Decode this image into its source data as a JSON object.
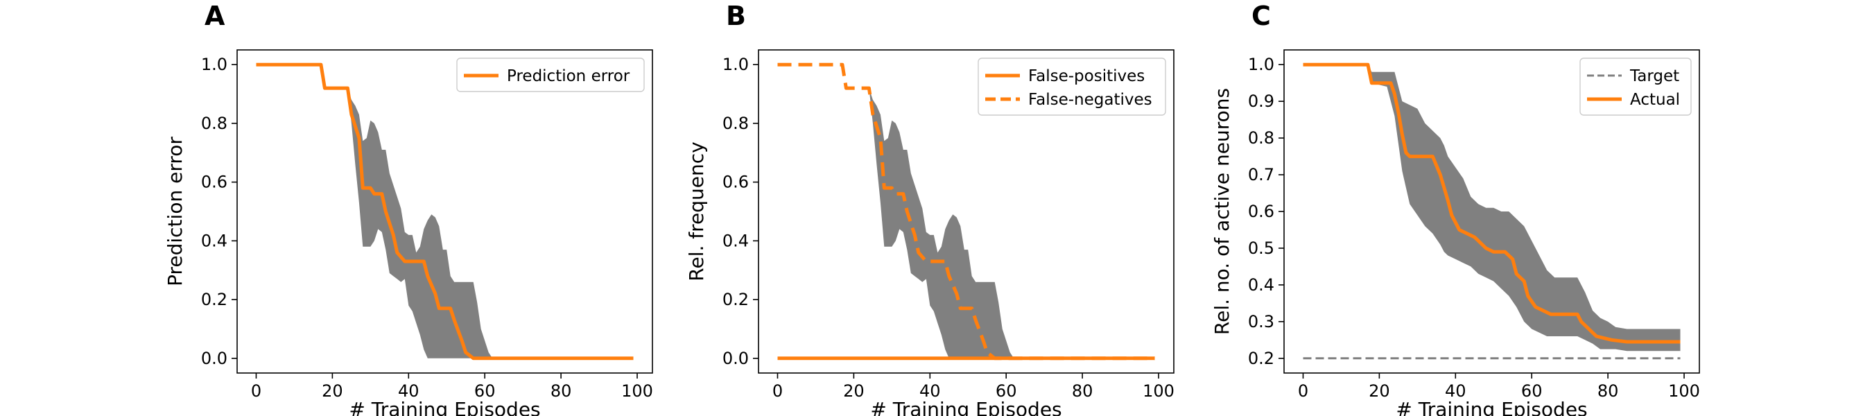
{
  "colors": {
    "orange": "#ff7f0e",
    "band": "#808080",
    "target": "#808080",
    "axis": "#000000"
  },
  "chart_data": [
    {
      "type": "line",
      "panel": "A",
      "xlabel": "# Training Episodes",
      "ylabel": "Prediction error",
      "xlim": [
        -5,
        104
      ],
      "ylim": [
        -0.05,
        1.05
      ],
      "xticks": [
        0,
        20,
        40,
        60,
        80,
        100
      ],
      "yticks": [
        0.0,
        0.2,
        0.4,
        0.6,
        0.8,
        1.0
      ],
      "ytick_labels": [
        "0.0",
        "0.2",
        "0.4",
        "0.6",
        "0.8",
        "1.0"
      ],
      "legend": "top-right",
      "series": [
        {
          "name": "Prediction error",
          "style": "solid",
          "x": [
            0,
            17,
            18,
            24,
            25,
            27,
            28,
            30,
            31,
            33,
            34,
            36,
            37,
            39,
            40,
            44,
            45,
            47,
            48,
            51,
            52,
            54,
            55,
            57,
            58,
            99
          ],
          "y": [
            1.0,
            1.0,
            0.92,
            0.92,
            0.83,
            0.75,
            0.58,
            0.58,
            0.56,
            0.56,
            0.5,
            0.42,
            0.36,
            0.33,
            0.33,
            0.33,
            0.28,
            0.22,
            0.17,
            0.17,
            0.13,
            0.06,
            0.02,
            0.0,
            0.0,
            0.0
          ]
        }
      ],
      "band": {
        "x": [
          0,
          17,
          18,
          24,
          25,
          26,
          27,
          28,
          29,
          30,
          31,
          32,
          33,
          34,
          35,
          36,
          37,
          38,
          39,
          40,
          41,
          42,
          43,
          44,
          45,
          46,
          47,
          48,
          49,
          50,
          51,
          52,
          53,
          54,
          55,
          56,
          57,
          58,
          59,
          60,
          61,
          62,
          63,
          99
        ],
        "upper": [
          1.0,
          1.0,
          0.92,
          0.92,
          0.88,
          0.86,
          0.83,
          0.74,
          0.75,
          0.81,
          0.8,
          0.77,
          0.71,
          0.71,
          0.63,
          0.59,
          0.55,
          0.51,
          0.43,
          0.42,
          0.42,
          0.36,
          0.38,
          0.44,
          0.47,
          0.49,
          0.48,
          0.45,
          0.37,
          0.37,
          0.28,
          0.26,
          0.26,
          0.26,
          0.26,
          0.26,
          0.26,
          0.19,
          0.1,
          0.06,
          0.02,
          0.0,
          0.0,
          0.0
        ],
        "lower": [
          1.0,
          1.0,
          0.92,
          0.92,
          0.8,
          0.66,
          0.53,
          0.38,
          0.38,
          0.38,
          0.4,
          0.44,
          0.43,
          0.37,
          0.29,
          0.28,
          0.27,
          0.26,
          0.27,
          0.18,
          0.16,
          0.12,
          0.08,
          0.03,
          0.0,
          0.0,
          0.0,
          0.0,
          0.0,
          0.0,
          0.0,
          0.0,
          0.0,
          0.0,
          0.0,
          0.0,
          0.0,
          0.0,
          0.0,
          0.0,
          0.0,
          0.0,
          0.0,
          0.0
        ]
      }
    },
    {
      "type": "line",
      "panel": "B",
      "xlabel": "# Training Episodes",
      "ylabel": "Rel. frequency",
      "xlim": [
        -5,
        104
      ],
      "ylim": [
        -0.05,
        1.05
      ],
      "xticks": [
        0,
        20,
        40,
        60,
        80,
        100
      ],
      "yticks": [
        0.0,
        0.2,
        0.4,
        0.6,
        0.8,
        1.0
      ],
      "ytick_labels": [
        "0.0",
        "0.2",
        "0.4",
        "0.6",
        "0.8",
        "1.0"
      ],
      "legend": "top-right",
      "series": [
        {
          "name": "False-positives",
          "style": "solid",
          "x": [
            0,
            99
          ],
          "y": [
            0.0,
            0.0
          ]
        },
        {
          "name": "False-negatives",
          "style": "dashed",
          "x": [
            0,
            17,
            18,
            24,
            25,
            27,
            28,
            30,
            31,
            33,
            34,
            36,
            37,
            39,
            40,
            44,
            45,
            47,
            48,
            51,
            52,
            54,
            55,
            57,
            58,
            99
          ],
          "y": [
            1.0,
            1.0,
            0.92,
            0.92,
            0.83,
            0.75,
            0.58,
            0.58,
            0.56,
            0.56,
            0.5,
            0.42,
            0.36,
            0.33,
            0.33,
            0.33,
            0.28,
            0.22,
            0.17,
            0.17,
            0.13,
            0.06,
            0.02,
            0.0,
            0.0,
            0.0
          ]
        }
      ],
      "band": {
        "x": [
          0,
          17,
          18,
          24,
          25,
          26,
          27,
          28,
          29,
          30,
          31,
          32,
          33,
          34,
          35,
          36,
          37,
          38,
          39,
          40,
          41,
          42,
          43,
          44,
          45,
          46,
          47,
          48,
          49,
          50,
          51,
          52,
          53,
          54,
          55,
          56,
          57,
          58,
          59,
          60,
          61,
          62,
          63,
          99
        ],
        "upper": [
          1.0,
          1.0,
          0.92,
          0.92,
          0.88,
          0.86,
          0.83,
          0.74,
          0.75,
          0.81,
          0.8,
          0.77,
          0.71,
          0.71,
          0.63,
          0.59,
          0.55,
          0.51,
          0.43,
          0.42,
          0.42,
          0.36,
          0.38,
          0.44,
          0.47,
          0.49,
          0.48,
          0.45,
          0.37,
          0.37,
          0.28,
          0.26,
          0.26,
          0.26,
          0.26,
          0.26,
          0.26,
          0.19,
          0.1,
          0.06,
          0.02,
          0.0,
          0.0,
          0.0
        ],
        "lower": [
          1.0,
          1.0,
          0.92,
          0.92,
          0.8,
          0.66,
          0.53,
          0.38,
          0.38,
          0.38,
          0.4,
          0.44,
          0.43,
          0.37,
          0.29,
          0.28,
          0.27,
          0.26,
          0.27,
          0.18,
          0.16,
          0.12,
          0.08,
          0.03,
          0.0,
          0.0,
          0.0,
          0.0,
          0.0,
          0.0,
          0.0,
          0.0,
          0.0,
          0.0,
          0.0,
          0.0,
          0.0,
          0.0,
          0.0,
          0.0,
          0.0,
          0.0,
          0.0,
          0.0
        ]
      }
    },
    {
      "type": "line",
      "panel": "C",
      "xlabel": "# Training Episodes",
      "ylabel": "Rel. no. of active neurons",
      "xlim": [
        -5,
        104
      ],
      "ylim": [
        0.16,
        1.04
      ],
      "xticks": [
        0,
        20,
        40,
        60,
        80,
        100
      ],
      "yticks": [
        0.2,
        0.3,
        0.4,
        0.5,
        0.6,
        0.7,
        0.8,
        0.9,
        1.0
      ],
      "ytick_labels": [
        "0.2",
        "0.3",
        "0.4",
        "0.5",
        "0.6",
        "0.7",
        "0.8",
        "0.9",
        "1.0"
      ],
      "legend": "top-right",
      "series": [
        {
          "name": "Target",
          "style": "dashed",
          "color": "target",
          "x": [
            0,
            99
          ],
          "y": [
            0.2,
            0.2
          ]
        },
        {
          "name": "Actual",
          "style": "solid",
          "x": [
            0,
            17,
            18,
            23,
            24,
            25,
            26,
            27,
            28,
            34,
            36,
            38,
            39,
            41,
            43,
            45,
            48,
            50,
            53,
            55,
            56,
            58,
            59,
            61,
            63,
            65,
            66,
            72,
            73,
            75,
            76,
            77,
            79,
            81,
            85,
            99
          ],
          "y": [
            1.0,
            1.0,
            0.95,
            0.95,
            0.92,
            0.87,
            0.81,
            0.76,
            0.75,
            0.75,
            0.7,
            0.63,
            0.59,
            0.55,
            0.54,
            0.53,
            0.5,
            0.49,
            0.49,
            0.47,
            0.43,
            0.41,
            0.37,
            0.34,
            0.33,
            0.32,
            0.32,
            0.32,
            0.3,
            0.28,
            0.27,
            0.26,
            0.255,
            0.25,
            0.245,
            0.245
          ]
        }
      ],
      "band": {
        "x": [
          0,
          17,
          18,
          22,
          24,
          26,
          28,
          30,
          32,
          34,
          36,
          37,
          38,
          40,
          42,
          44,
          46,
          48,
          50,
          52,
          54,
          56,
          58,
          60,
          62,
          64,
          66,
          68,
          70,
          72,
          74,
          76,
          78,
          80,
          82,
          85,
          99
        ],
        "upper": [
          1.0,
          1.0,
          0.98,
          0.98,
          0.98,
          0.9,
          0.89,
          0.88,
          0.84,
          0.82,
          0.8,
          0.78,
          0.75,
          0.72,
          0.69,
          0.64,
          0.62,
          0.61,
          0.61,
          0.6,
          0.6,
          0.58,
          0.56,
          0.52,
          0.48,
          0.44,
          0.42,
          0.42,
          0.42,
          0.42,
          0.38,
          0.33,
          0.31,
          0.3,
          0.285,
          0.28,
          0.28
        ],
        "lower": [
          1.0,
          1.0,
          0.95,
          0.94,
          0.86,
          0.71,
          0.62,
          0.59,
          0.56,
          0.54,
          0.51,
          0.49,
          0.48,
          0.47,
          0.46,
          0.45,
          0.43,
          0.42,
          0.41,
          0.39,
          0.37,
          0.34,
          0.3,
          0.28,
          0.27,
          0.26,
          0.26,
          0.26,
          0.26,
          0.26,
          0.25,
          0.24,
          0.225,
          0.225,
          0.225,
          0.22,
          0.22
        ]
      }
    }
  ]
}
